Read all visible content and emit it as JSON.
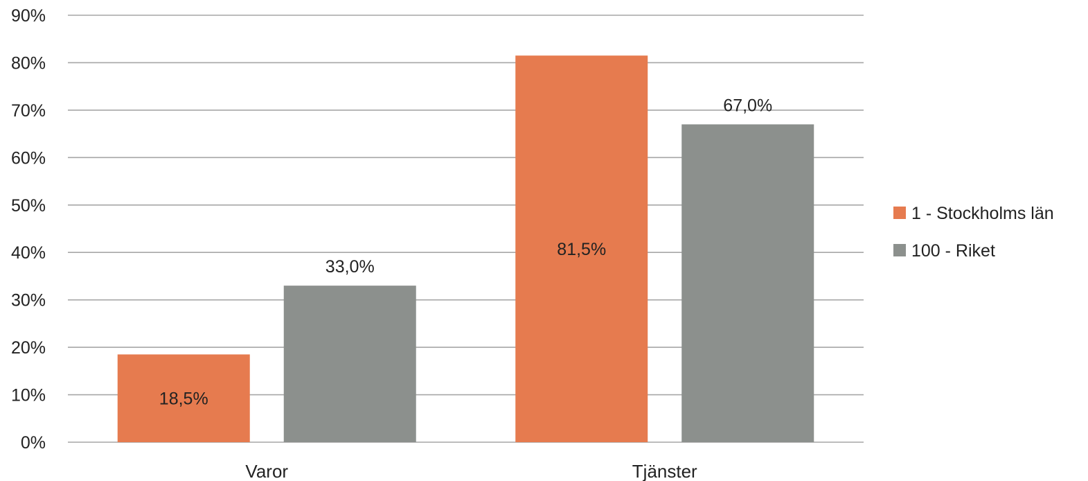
{
  "chart_data": {
    "type": "bar",
    "categories": [
      "Varor",
      "Tjänster"
    ],
    "series": [
      {
        "name": "1 - Stockholms län",
        "values": [
          18.5,
          81.5
        ],
        "labels": [
          "18,5%",
          "81,5%"
        ],
        "color": "#E67B4F"
      },
      {
        "name": "100 - Riket",
        "values": [
          33.0,
          67.0
        ],
        "labels": [
          "33,0%",
          "67,0%"
        ],
        "color": "#8C908D"
      }
    ],
    "ylim": [
      0,
      90
    ],
    "yticks": [
      0,
      10,
      20,
      30,
      40,
      50,
      60,
      70,
      80,
      90
    ],
    "ytick_labels": [
      "0%",
      "10%",
      "20%",
      "30%",
      "40%",
      "50%",
      "60%",
      "70%",
      "80%",
      "90%"
    ],
    "grid": true,
    "legend_position": "right",
    "label_placement": {
      "1 - Stockholms län": "inside-center",
      "100 - Riket": "outside-top"
    }
  }
}
